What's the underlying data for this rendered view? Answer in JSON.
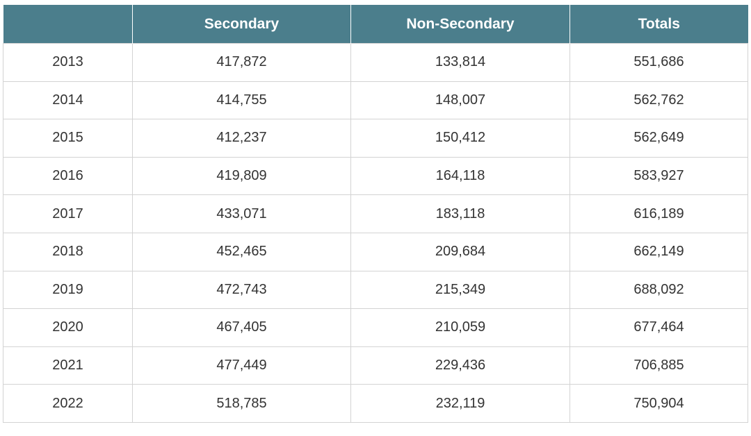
{
  "table": {
    "headers": [
      "",
      "Secondary",
      "Non-Secondary",
      "Totals"
    ],
    "rows": [
      [
        "2013",
        "417,872",
        "133,814",
        "551,686"
      ],
      [
        "2014",
        "414,755",
        "148,007",
        "562,762"
      ],
      [
        "2015",
        "412,237",
        "150,412",
        "562,649"
      ],
      [
        "2016",
        "419,809",
        "164,118",
        "583,927"
      ],
      [
        "2017",
        "433,071",
        "183,118",
        "616,189"
      ],
      [
        "2018",
        "452,465",
        "209,684",
        "662,149"
      ],
      [
        "2019",
        "472,743",
        "215,349",
        "688,092"
      ],
      [
        "2020",
        "467,405",
        "210,059",
        "677,464"
      ],
      [
        "2021",
        "477,449",
        "229,436",
        "706,885"
      ],
      [
        "2022",
        "518,785",
        "232,119",
        "750,904"
      ]
    ]
  },
  "colors": {
    "header_background": "#4b7e8c",
    "header_text": "#ffffff",
    "cell_text": "#333333",
    "border": "#d3d3d3"
  }
}
